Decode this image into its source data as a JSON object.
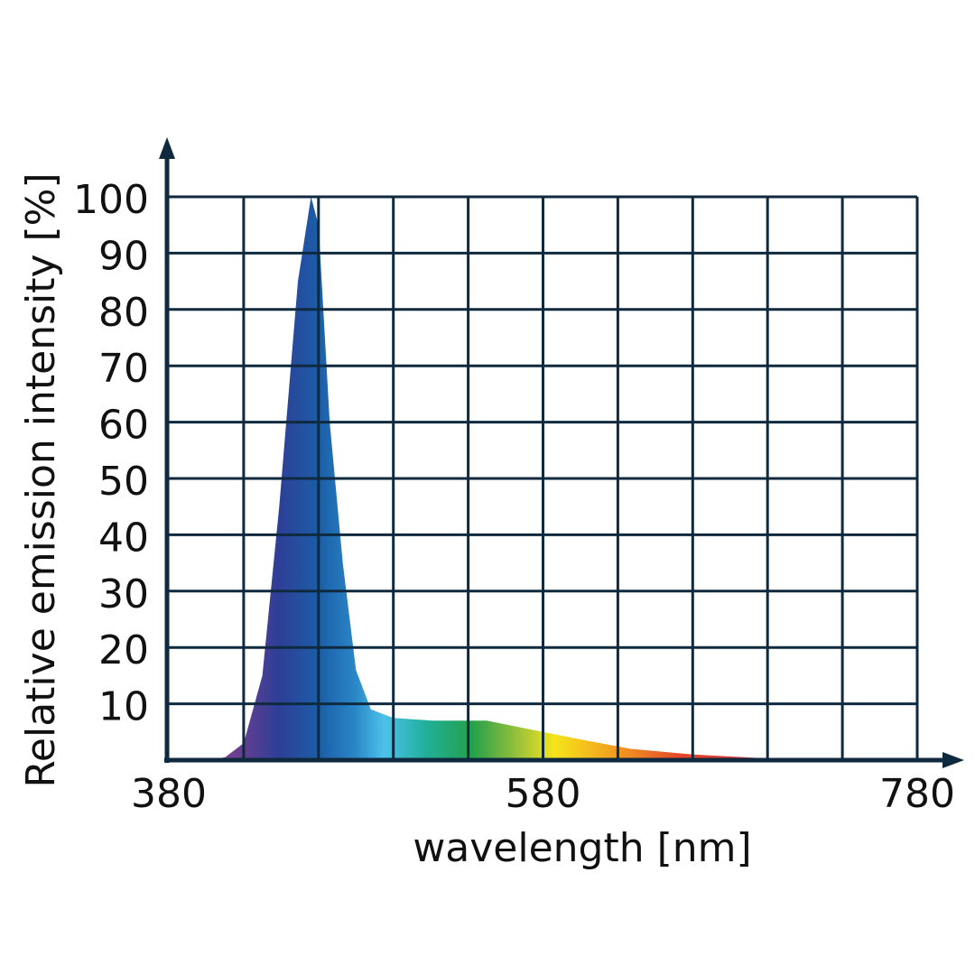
{
  "chart_data": {
    "type": "area",
    "x_label": "wavelength [nm]",
    "y_label": "Relative emission intensity [%]",
    "x": [
      380,
      400,
      410,
      420,
      430,
      439,
      449,
      456,
      460,
      466,
      473,
      480,
      488,
      500,
      521,
      550,
      580,
      603,
      627,
      660,
      700,
      724,
      780
    ],
    "values": [
      0,
      0,
      0.5,
      3,
      15,
      45,
      85,
      100,
      95,
      60,
      35,
      16,
      9,
      7.5,
      7,
      7,
      5,
      3.5,
      2,
      1,
      0.3,
      0,
      0
    ],
    "xlim": [
      380,
      780
    ],
    "xticks": [
      380,
      580,
      780
    ],
    "xgrid": [
      420,
      460,
      500,
      540,
      580,
      620,
      660,
      700,
      740,
      780
    ],
    "ylim": [
      0,
      100
    ],
    "yticks": [
      10,
      20,
      30,
      40,
      50,
      60,
      70,
      80,
      90,
      100
    ],
    "grid": true,
    "grid_color": "#0f2a3f"
  }
}
